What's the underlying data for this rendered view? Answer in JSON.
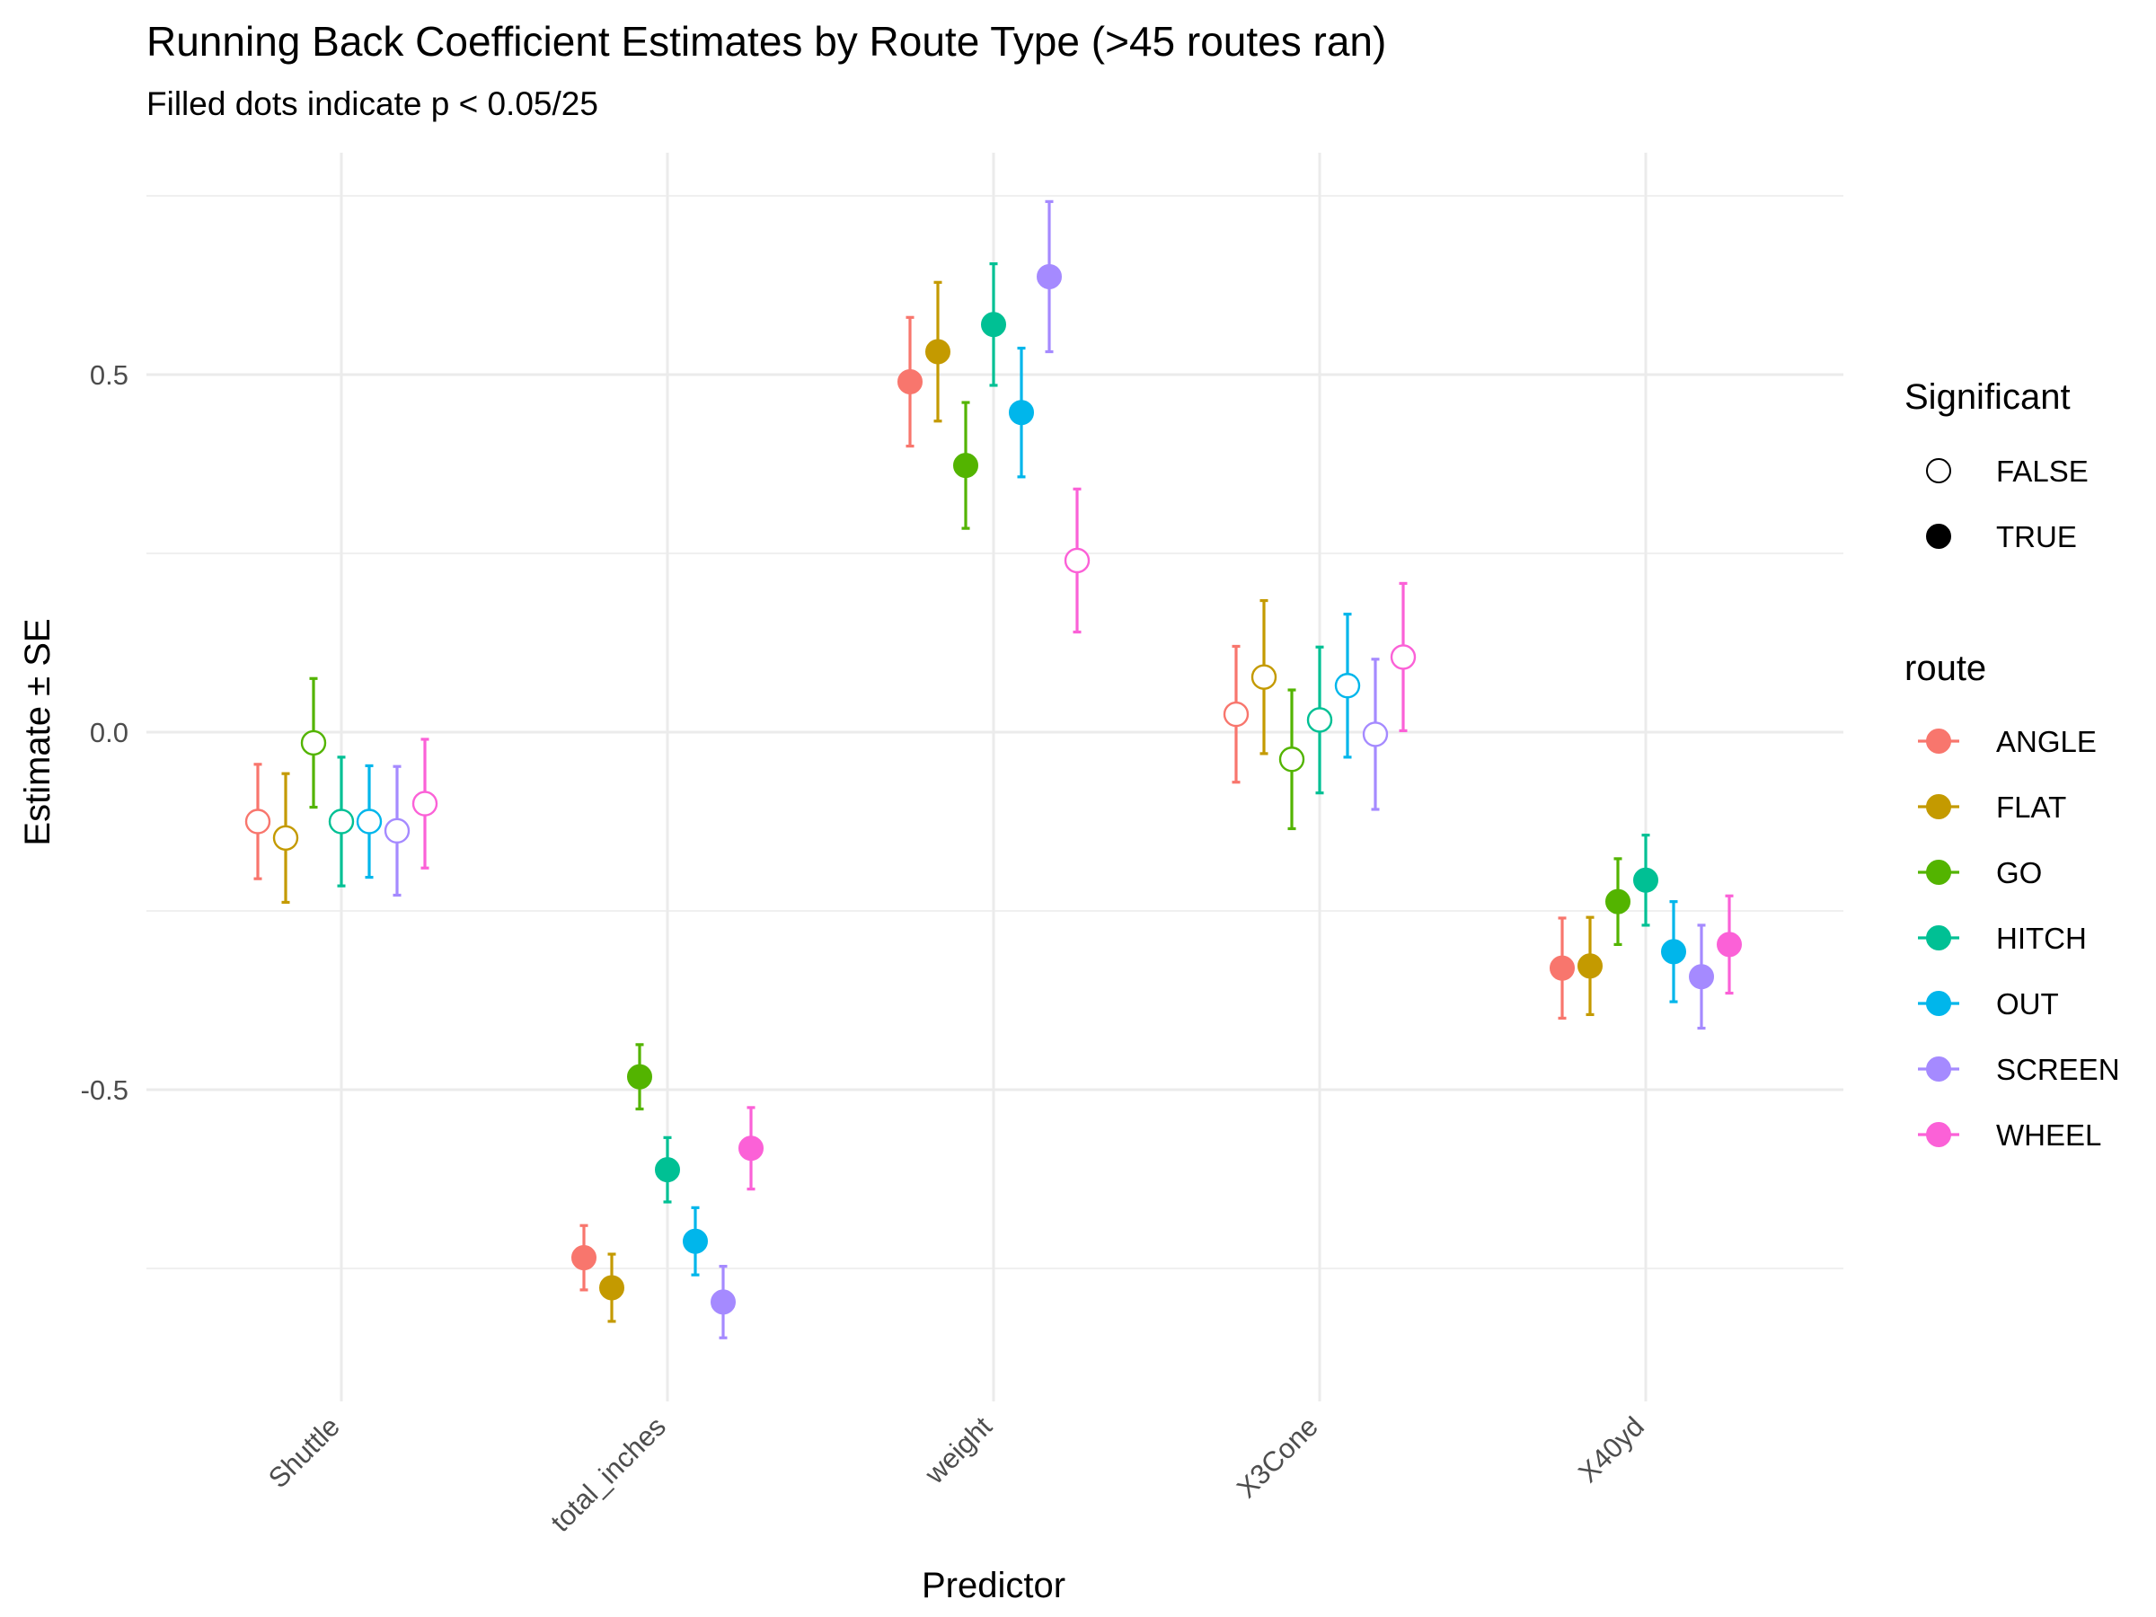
{
  "chart_data": {
    "type": "scatter",
    "title": "Running Back Coefficient Estimates by Route Type (>45 routes ran)",
    "subtitle": "Filled dots indicate p < 0.05/25",
    "xlabel": "Predictor",
    "ylabel": "Estimate ± SE",
    "categories": [
      "Shuttle",
      "total_inches",
      "weight",
      "X3Cone",
      "X40yd"
    ],
    "ylim": [
      -0.93,
      0.75
    ],
    "yticks": [
      -0.5,
      0.0,
      0.5
    ],
    "ytick_labels": [
      "-0.5",
      "0.0",
      "0.5"
    ],
    "grid": true,
    "legend_position": "right",
    "legends": {
      "significant": {
        "title": "Significant",
        "items": [
          {
            "label": "FALSE",
            "filled": false
          },
          {
            "label": "TRUE",
            "filled": true
          }
        ]
      },
      "route": {
        "title": "route"
      }
    },
    "series": [
      {
        "name": "ANGLE",
        "color": "#F8766D",
        "estimate": [
          -0.125,
          -0.735,
          0.49,
          0.025,
          -0.33
        ],
        "se": [
          0.08,
          0.045,
          0.09,
          0.095,
          0.07
        ],
        "significant": [
          false,
          true,
          true,
          false,
          true
        ]
      },
      {
        "name": "FLAT",
        "color": "#C49A00",
        "estimate": [
          -0.148,
          -0.777,
          0.532,
          0.077,
          -0.327
        ],
        "se": [
          0.09,
          0.047,
          0.097,
          0.107,
          0.068
        ],
        "significant": [
          false,
          true,
          true,
          false,
          true
        ]
      },
      {
        "name": "GO",
        "color": "#53B400",
        "estimate": [
          -0.015,
          -0.482,
          0.373,
          -0.038,
          -0.237
        ],
        "se": [
          0.09,
          0.045,
          0.088,
          0.097,
          0.06
        ],
        "significant": [
          false,
          true,
          true,
          false,
          true
        ]
      },
      {
        "name": "HITCH",
        "color": "#00C094",
        "estimate": [
          -0.125,
          -0.612,
          0.57,
          0.017,
          -0.207
        ],
        "se": [
          0.09,
          0.045,
          0.085,
          0.102,
          0.063
        ],
        "significant": [
          false,
          true,
          true,
          false,
          true
        ]
      },
      {
        "name": "OUT",
        "color": "#00B6EB",
        "estimate": [
          -0.125,
          -0.712,
          0.447,
          0.065,
          -0.307
        ],
        "se": [
          0.078,
          0.047,
          0.09,
          0.1,
          0.07
        ],
        "significant": [
          false,
          true,
          true,
          false,
          true
        ]
      },
      {
        "name": "SCREEN",
        "color": "#A58AFF",
        "estimate": [
          -0.138,
          -0.797,
          0.637,
          -0.003,
          -0.342
        ],
        "se": [
          0.09,
          0.05,
          0.105,
          0.105,
          0.072
        ],
        "significant": [
          false,
          true,
          true,
          false,
          true
        ]
      },
      {
        "name": "WHEEL",
        "color": "#FB61D7",
        "estimate": [
          -0.1,
          -0.582,
          0.24,
          0.105,
          -0.297
        ],
        "se": [
          0.09,
          0.057,
          0.1,
          0.103,
          0.068
        ],
        "significant": [
          false,
          true,
          false,
          false,
          true
        ]
      }
    ]
  }
}
